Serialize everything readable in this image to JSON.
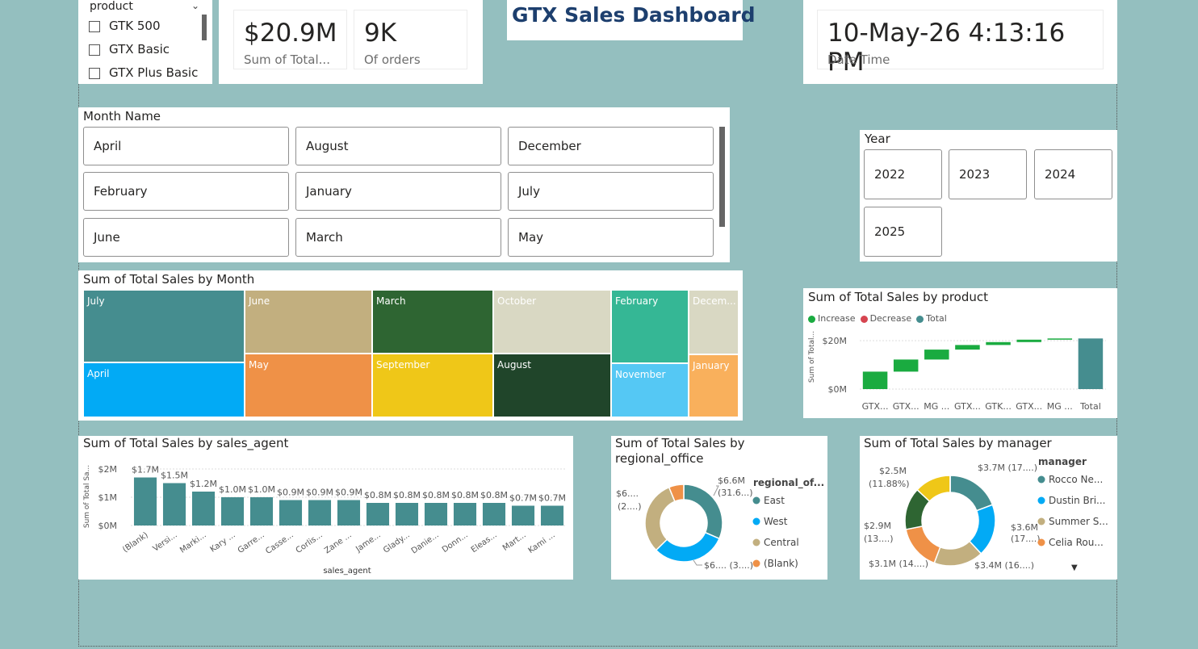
{
  "dashboard_title": "GTX Sales Dashboard",
  "product_slicer": {
    "title": "product",
    "items": [
      "GTK 500",
      "GTX Basic",
      "GTX Plus Basic"
    ]
  },
  "kpis": {
    "total_sales": {
      "value": "$20.9M",
      "label": "Sum of Total..."
    },
    "orders": {
      "value": "9K",
      "label": "Of orders"
    },
    "datetime": {
      "value": "10-May-26 4:13:16 PM",
      "label": "Date Time"
    }
  },
  "month_slicer": {
    "title": "Month Name",
    "tiles": [
      "April",
      "August",
      "December",
      "February",
      "January",
      "July",
      "June",
      "March",
      "May"
    ]
  },
  "year_slicer": {
    "title": "Year",
    "tiles": [
      "2022",
      "2023",
      "2024",
      "2025"
    ]
  },
  "treemap": {
    "title": "Sum of Total Sales by Month",
    "labels": {
      "july": "July",
      "april": "April",
      "june": "June",
      "may": "May",
      "march": "March",
      "september": "September",
      "october": "October",
      "august": "August",
      "february": "February",
      "november": "November",
      "december": "Decem...",
      "january": "January"
    },
    "colors": {
      "july": "#458d8f",
      "april": "#02aaf5",
      "june": "#c2af7f",
      "may": "#ef9147",
      "march": "#2e6532",
      "september": "#efc718",
      "october": "#d9d8c3",
      "august": "#20452a",
      "february": "#35b795",
      "november": "#55c8f4",
      "december": "#d9d8c3",
      "january": "#f9b05c"
    }
  },
  "product_chart": {
    "title": "Sum of Total Sales by product",
    "legend": [
      {
        "label": "Increase",
        "color": "#1aab40"
      },
      {
        "label": "Decrease",
        "color": "#d64550"
      },
      {
        "label": "Total",
        "color": "#458d8f"
      }
    ],
    "ylabel": "Sum of Total...",
    "yticks": [
      "$20M",
      "$0M"
    ],
    "categories": [
      "GTX...",
      "GTX...",
      "MG ...",
      "GTX...",
      "GTK...",
      "GTX...",
      "MG ...",
      "Total"
    ]
  },
  "agent_chart": {
    "title": "Sum of Total Sales by sales_agent",
    "ylabel": "Sum of Total Sa...",
    "xlabel": "sales_agent",
    "yticks": [
      "$2M",
      "$1M",
      "$0M"
    ],
    "color": "#458d8f"
  },
  "regional_chart": {
    "title_line1": "Sum of Total Sales by",
    "title_line2": "regional_office",
    "legend_title": "regional_of...",
    "legend": [
      {
        "label": "East",
        "color": "#458d8f"
      },
      {
        "label": "West",
        "color": "#02aaf5"
      },
      {
        "label": "Central",
        "color": "#c2af7f"
      },
      {
        "label": "(Blank)",
        "color": "#ef9147"
      }
    ],
    "labels": {
      "east_1": "$6.6M",
      "east_2": "(31.6...)",
      "left_1": "$6....",
      "left_2": "(2....)",
      "bottom": "$6.... (3....)"
    }
  },
  "manager_chart": {
    "title": "Sum of Total Sales by manager",
    "legend_title": "manager",
    "legend": [
      {
        "label": "Rocco Ne...",
        "color": "#458d8f"
      },
      {
        "label": "Dustin Bri...",
        "color": "#02aaf5"
      },
      {
        "label": "Summer S...",
        "color": "#c2af7f"
      },
      {
        "label": "Celia Rou...",
        "color": "#ef9147"
      }
    ],
    "labels": {
      "a": "$3.7M (17....)",
      "b": "$3.6M",
      "b2": "(17....)",
      "c": "$3.4M (16....)",
      "d": "$3.1M (14....)",
      "e": "$2.9M",
      "e2": "(13....)",
      "f": "$2.5M",
      "f2": "(11.88%)"
    }
  },
  "chart_data": [
    {
      "type": "bar",
      "title": "Sum of Total Sales by sales_agent",
      "xlabel": "sales_agent",
      "ylabel": "Sum of Total Sa...",
      "ylim": [
        0,
        2
      ],
      "categories": [
        "(Blank)",
        "Versi...",
        "Marki...",
        "Kary ...",
        "Garre...",
        "Casse...",
        "Corlis...",
        "Zane ...",
        "Jame...",
        "Glady...",
        "Danie...",
        "Donn...",
        "Eleas...",
        "Mart...",
        "Kami ..."
      ],
      "values": [
        1.7,
        1.5,
        1.2,
        1.0,
        1.0,
        0.9,
        0.9,
        0.9,
        0.8,
        0.8,
        0.8,
        0.8,
        0.8,
        0.7,
        0.7
      ],
      "data_labels": [
        "$1.7M",
        "$1.5M",
        "$1.2M",
        "$1.0M",
        "$1.0M",
        "$0.9M",
        "$0.9M",
        "$0.9M",
        "$0.8M",
        "$0.8M",
        "$0.8M",
        "$0.8M",
        "$0.8M",
        "$0.7M",
        "$0.7M"
      ]
    },
    {
      "type": "bar",
      "title": "Sum of Total Sales by product",
      "categories": [
        "GTX...",
        "GTX...",
        "MG ...",
        "GTX...",
        "GTK...",
        "GTX...",
        "MG ...",
        "Total"
      ],
      "values": [
        7.2,
        5.0,
        4.1,
        1.9,
        1.2,
        1.0,
        0.5,
        20.9
      ],
      "ylim": [
        0,
        25
      ]
    },
    {
      "type": "pie",
      "title": "Sum of Total Sales by regional_office",
      "categories": [
        "East",
        "West",
        "Central",
        "(Blank)"
      ],
      "values": [
        6.6,
        6.5,
        6.5,
        1.3
      ]
    },
    {
      "type": "pie",
      "title": "Sum of Total Sales by manager",
      "categories": [
        "Rocco Ne...",
        "Dustin Bri...",
        "Summer S...",
        "Celia Rou...",
        "",
        ""
      ],
      "values": [
        3.7,
        3.6,
        3.4,
        3.1,
        2.9,
        2.5
      ]
    },
    {
      "type": "heatmap",
      "title": "Sum of Total Sales by Month",
      "categories": [
        "July",
        "April",
        "June",
        "May",
        "March",
        "September",
        "October",
        "August",
        "February",
        "November",
        "Decem...",
        "January"
      ]
    }
  ]
}
